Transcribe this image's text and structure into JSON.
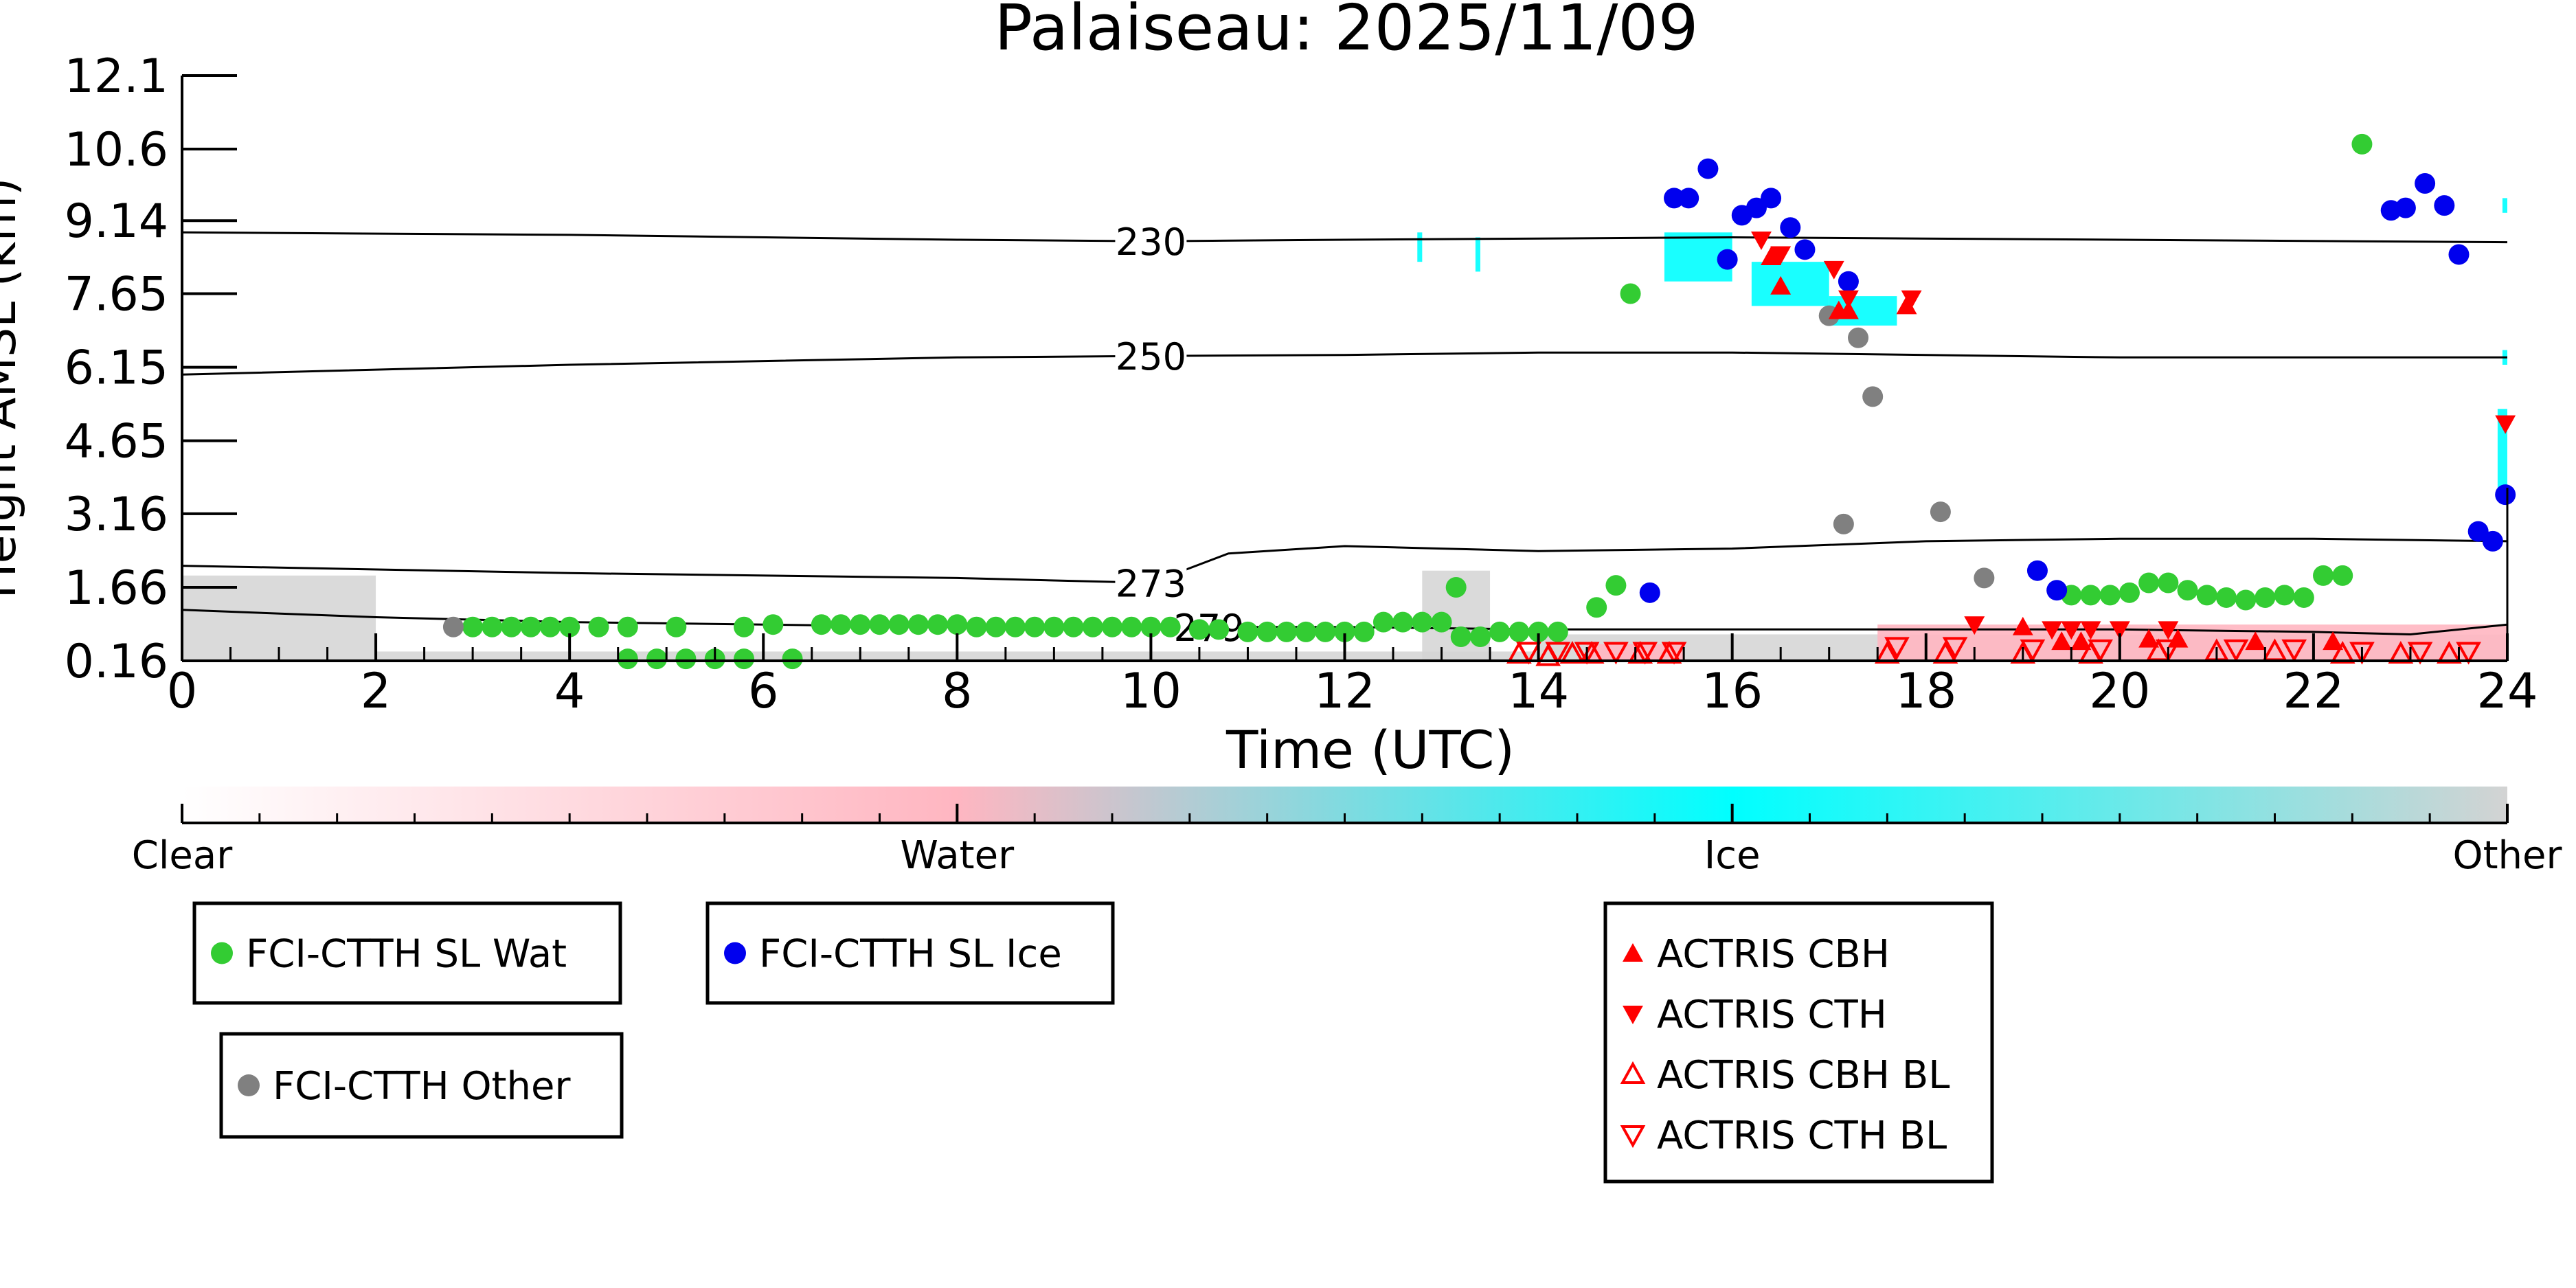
{
  "chart_data": {
    "type": "scatter",
    "title": "Palaiseau: 2025/11/09",
    "xlabel": "Time (UTC)",
    "ylabel": "Height AMSL (km)",
    "xlim": [
      0,
      24
    ],
    "ylim": [
      0.16,
      12.1
    ],
    "xticks": [
      0,
      2,
      4,
      6,
      8,
      10,
      12,
      14,
      16,
      18,
      20,
      22,
      24
    ],
    "yticks": [
      "0.16",
      "1.66",
      "3.16",
      "4.65",
      "6.15",
      "7.65",
      "9.14",
      "10.6",
      "12.1"
    ],
    "colors": {
      "water": "#33cc33",
      "ice": "#0000ee",
      "other": "#808080",
      "actris": "#ff0000",
      "clear": "#ffffff",
      "water_class": "#ffb6c1",
      "ice_class": "#00ffff",
      "other_class": "#d3d3d3"
    },
    "colorbar": {
      "labels": [
        "Clear",
        "Water",
        "Ice",
        "Other"
      ]
    },
    "isotherms": [
      {
        "label": "230",
        "x": [
          0,
          4,
          8,
          10,
          12,
          16,
          20,
          24
        ],
        "y": [
          8.9,
          8.85,
          8.75,
          8.72,
          8.75,
          8.8,
          8.75,
          8.7
        ]
      },
      {
        "label": "250",
        "x": [
          0,
          4,
          8,
          10,
          12,
          14,
          16,
          20,
          24
        ],
        "y": [
          6.0,
          6.2,
          6.35,
          6.38,
          6.4,
          6.45,
          6.45,
          6.35,
          6.35
        ]
      },
      {
        "label": "273",
        "x": [
          0,
          4,
          8,
          10,
          10.8,
          12,
          13,
          14,
          16,
          18,
          20,
          22,
          24
        ],
        "y": [
          2.1,
          1.95,
          1.85,
          1.75,
          2.35,
          2.5,
          2.45,
          2.4,
          2.45,
          2.6,
          2.65,
          2.65,
          2.6
        ]
      },
      {
        "label": "279",
        "x": [
          0,
          2,
          4,
          8,
          10,
          12,
          14,
          16,
          18,
          20,
          22,
          23,
          24
        ],
        "y": [
          1.2,
          1.05,
          0.95,
          0.85,
          0.85,
          0.85,
          0.8,
          0.8,
          0.8,
          0.8,
          0.75,
          0.7,
          0.9
        ]
      }
    ],
    "series": [
      {
        "name": "FCI-CTTH SL Wat",
        "marker": "circle",
        "points": [
          [
            3,
            0.85
          ],
          [
            3.2,
            0.85
          ],
          [
            3.4,
            0.85
          ],
          [
            3.6,
            0.85
          ],
          [
            3.8,
            0.85
          ],
          [
            4,
            0.85
          ],
          [
            4.3,
            0.85
          ],
          [
            4.6,
            0.85
          ],
          [
            5.1,
            0.85
          ],
          [
            5.8,
            0.85
          ],
          [
            6.1,
            0.9
          ],
          [
            6.6,
            0.9
          ],
          [
            6.8,
            0.9
          ],
          [
            7,
            0.9
          ],
          [
            7.2,
            0.9
          ],
          [
            7.4,
            0.9
          ],
          [
            7.6,
            0.9
          ],
          [
            7.8,
            0.9
          ],
          [
            8,
            0.9
          ],
          [
            8.2,
            0.85
          ],
          [
            8.4,
            0.85
          ],
          [
            8.6,
            0.85
          ],
          [
            8.8,
            0.85
          ],
          [
            9,
            0.85
          ],
          [
            9.2,
            0.85
          ],
          [
            9.4,
            0.85
          ],
          [
            9.6,
            0.85
          ],
          [
            9.8,
            0.85
          ],
          [
            10,
            0.85
          ],
          [
            10.2,
            0.85
          ],
          [
            10.5,
            0.8
          ],
          [
            10.7,
            0.8
          ],
          [
            11,
            0.75
          ],
          [
            11.2,
            0.75
          ],
          [
            11.4,
            0.75
          ],
          [
            11.6,
            0.75
          ],
          [
            11.8,
            0.75
          ],
          [
            12,
            0.75
          ],
          [
            12.2,
            0.75
          ],
          [
            12.4,
            0.95
          ],
          [
            12.6,
            0.95
          ],
          [
            12.8,
            0.95
          ],
          [
            13,
            0.95
          ],
          [
            13.2,
            0.65
          ],
          [
            13.4,
            0.65
          ],
          [
            13.6,
            0.75
          ],
          [
            13.8,
            0.75
          ],
          [
            14,
            0.75
          ],
          [
            14.2,
            0.75
          ],
          [
            4.6,
            0.2
          ],
          [
            4.9,
            0.2
          ],
          [
            5.2,
            0.2
          ],
          [
            5.5,
            0.2
          ],
          [
            5.8,
            0.2
          ],
          [
            6.3,
            0.2
          ],
          [
            13.15,
            1.66
          ],
          [
            14.6,
            1.25
          ],
          [
            14.8,
            1.7
          ],
          [
            14.95,
            7.65
          ],
          [
            19.5,
            1.5
          ],
          [
            19.7,
            1.5
          ],
          [
            19.9,
            1.5
          ],
          [
            20.1,
            1.55
          ],
          [
            20.3,
            1.75
          ],
          [
            20.5,
            1.75
          ],
          [
            20.7,
            1.6
          ],
          [
            20.9,
            1.5
          ],
          [
            21.1,
            1.45
          ],
          [
            21.3,
            1.4
          ],
          [
            21.5,
            1.45
          ],
          [
            21.7,
            1.5
          ],
          [
            21.9,
            1.45
          ],
          [
            22.1,
            1.9
          ],
          [
            22.3,
            1.9
          ],
          [
            22.5,
            10.7
          ]
        ]
      },
      {
        "name": "FCI-CTTH SL Ice",
        "marker": "circle",
        "points": [
          [
            15.15,
            1.55
          ],
          [
            15.4,
            9.6
          ],
          [
            15.55,
            9.6
          ],
          [
            15.75,
            10.2
          ],
          [
            15.95,
            8.35
          ],
          [
            16.1,
            9.25
          ],
          [
            16.25,
            9.4
          ],
          [
            16.4,
            9.6
          ],
          [
            16.6,
            9.0
          ],
          [
            16.75,
            8.55
          ],
          [
            17.2,
            7.9
          ],
          [
            19.15,
            2.0
          ],
          [
            19.35,
            1.6
          ],
          [
            22.8,
            9.35
          ],
          [
            22.95,
            9.4
          ],
          [
            23.15,
            9.9
          ],
          [
            23.35,
            9.45
          ],
          [
            23.5,
            8.45
          ],
          [
            23.7,
            2.8
          ],
          [
            23.85,
            2.6
          ],
          [
            23.98,
            3.55
          ]
        ]
      },
      {
        "name": "FCI-CTTH Other",
        "marker": "circle",
        "points": [
          [
            2.8,
            0.85
          ],
          [
            17.0,
            7.2
          ],
          [
            17.3,
            6.75
          ],
          [
            17.45,
            5.55
          ],
          [
            17.15,
            2.95
          ],
          [
            18.15,
            3.2
          ],
          [
            18.6,
            1.85
          ]
        ]
      },
      {
        "name": "ACTRIS CBH",
        "marker": "triangle-up",
        "points": [
          [
            16.4,
            8.4
          ],
          [
            16.5,
            7.8
          ],
          [
            17.1,
            7.3
          ],
          [
            17.2,
            7.3
          ],
          [
            17.8,
            7.4
          ],
          [
            19.0,
            0.85
          ],
          [
            19.4,
            0.55
          ],
          [
            19.6,
            0.55
          ],
          [
            20.3,
            0.6
          ],
          [
            20.6,
            0.6
          ],
          [
            21.4,
            0.55
          ],
          [
            22.2,
            0.55
          ]
        ]
      },
      {
        "name": "ACTRIS CTH",
        "marker": "triangle-down",
        "points": [
          [
            16.3,
            8.75
          ],
          [
            16.5,
            8.45
          ],
          [
            17.05,
            8.15
          ],
          [
            17.2,
            7.55
          ],
          [
            17.85,
            7.55
          ],
          [
            23.98,
            5.0
          ],
          [
            18.5,
            0.9
          ],
          [
            19.3,
            0.8
          ],
          [
            19.5,
            0.8
          ],
          [
            19.7,
            0.8
          ],
          [
            20.0,
            0.8
          ],
          [
            20.5,
            0.8
          ]
        ]
      },
      {
        "name": "ACTRIS CBH BL",
        "marker": "triangle-up-open",
        "points": [
          [
            13.8,
            0.3
          ],
          [
            14.1,
            0.25
          ],
          [
            14.35,
            0.3
          ],
          [
            14.55,
            0.3
          ],
          [
            15.05,
            0.3
          ],
          [
            15.35,
            0.3
          ],
          [
            17.6,
            0.3
          ],
          [
            18.2,
            0.3
          ],
          [
            19.0,
            0.3
          ],
          [
            19.7,
            0.3
          ],
          [
            20.4,
            0.35
          ],
          [
            21.0,
            0.35
          ],
          [
            21.6,
            0.35
          ],
          [
            22.3,
            0.3
          ],
          [
            22.9,
            0.3
          ],
          [
            23.4,
            0.3
          ]
        ]
      },
      {
        "name": "ACTRIS CTH BL",
        "marker": "triangle-down-open",
        "points": [
          [
            13.9,
            0.35
          ],
          [
            14.2,
            0.35
          ],
          [
            14.5,
            0.35
          ],
          [
            14.8,
            0.35
          ],
          [
            15.1,
            0.35
          ],
          [
            15.4,
            0.35
          ],
          [
            17.7,
            0.45
          ],
          [
            18.3,
            0.45
          ],
          [
            19.1,
            0.4
          ],
          [
            19.8,
            0.4
          ],
          [
            20.5,
            0.4
          ],
          [
            21.2,
            0.4
          ],
          [
            21.8,
            0.4
          ],
          [
            22.5,
            0.35
          ],
          [
            23.1,
            0.35
          ],
          [
            23.6,
            0.35
          ]
        ]
      }
    ],
    "background": [
      {
        "class": "other",
        "x0": 0,
        "x1": 2,
        "y0": 0.16,
        "y1": 1.9
      },
      {
        "class": "other",
        "x0": 2,
        "x1": 14,
        "y0": 0.16,
        "y1": 0.35
      },
      {
        "class": "other",
        "x0": 12.8,
        "x1": 13.5,
        "y0": 0.16,
        "y1": 2.0
      },
      {
        "class": "other",
        "x0": 14,
        "x1": 24,
        "y0": 0.16,
        "y1": 0.7
      },
      {
        "class": "water",
        "x0": 14.5,
        "x1": 15.5,
        "y0": 0.16,
        "y1": 0.5
      },
      {
        "class": "water",
        "x0": 17.5,
        "x1": 24,
        "y0": 0.16,
        "y1": 0.9
      },
      {
        "class": "ice",
        "x0": 15.3,
        "x1": 16.0,
        "y0": 7.9,
        "y1": 8.9
      },
      {
        "class": "ice",
        "x0": 16.2,
        "x1": 17.0,
        "y0": 7.4,
        "y1": 8.3
      },
      {
        "class": "ice",
        "x0": 17.0,
        "x1": 17.7,
        "y0": 7.0,
        "y1": 7.6
      },
      {
        "class": "ice",
        "x0": 12.75,
        "x1": 12.8,
        "y0": 8.3,
        "y1": 8.9
      },
      {
        "class": "ice",
        "x0": 13.35,
        "x1": 13.4,
        "y0": 8.1,
        "y1": 8.8
      },
      {
        "class": "ice",
        "x0": 23.9,
        "x1": 24,
        "y0": 3.6,
        "y1": 5.3
      },
      {
        "class": "ice",
        "x0": 23.95,
        "x1": 24,
        "y0": 6.2,
        "y1": 6.5
      },
      {
        "class": "ice",
        "x0": 23.95,
        "x1": 24,
        "y0": 9.3,
        "y1": 9.6
      }
    ],
    "legend": {
      "groups": [
        [
          "FCI-CTTH SL Wat"
        ],
        [
          "FCI-CTTH SL Ice"
        ],
        [
          "FCI-CTTH Other"
        ],
        [
          "ACTRIS CBH",
          "ACTRIS CTH",
          "ACTRIS CBH BL",
          "ACTRIS CTH BL"
        ]
      ]
    }
  }
}
